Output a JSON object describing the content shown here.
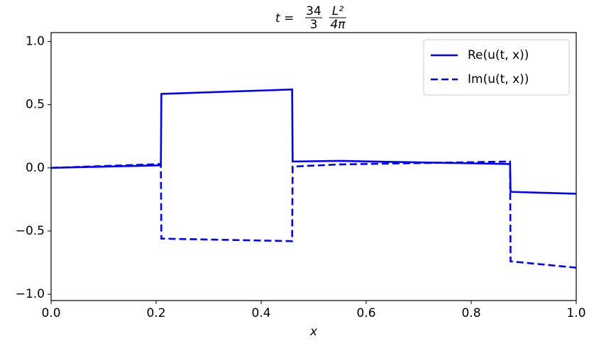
{
  "chart_data": {
    "type": "line",
    "title": {
      "lhs": "t =",
      "fractions": [
        [
          "34",
          "3"
        ],
        [
          "L²",
          "4π"
        ]
      ]
    },
    "x_label": "x",
    "x": [
      0,
      0.209,
      0.21,
      0.459,
      0.46,
      0.55,
      0.874,
      0.875,
      1.0
    ],
    "series": [
      {
        "name": "Re(u(t, x))",
        "color": "#0000ff",
        "linestyle": "solid",
        "values": [
          0,
          0.02,
          0.585,
          0.62,
          0.05,
          0.055,
          0.03,
          -0.19,
          -0.205
        ]
      },
      {
        "name": "Im(u(t, x))",
        "color": "#0000ff",
        "linestyle": "dashed",
        "values": [
          0,
          0.03,
          -0.56,
          -0.58,
          0.01,
          0.027,
          0.05,
          -0.74,
          -0.79
        ]
      }
    ],
    "xlim": [
      0,
      1
    ],
    "ylim": [
      -1.05,
      1.07
    ],
    "xticks": [
      {
        "value": 0,
        "label": "0.0"
      },
      {
        "value": 0.2,
        "label": "0.2"
      },
      {
        "value": 0.4,
        "label": "0.4"
      },
      {
        "value": 0.6,
        "label": "0.6"
      },
      {
        "value": 0.8,
        "label": "0.8"
      },
      {
        "value": 1,
        "label": "1.0"
      }
    ],
    "yticks": [
      {
        "value": -1,
        "label": "−1.0"
      },
      {
        "value": -0.5,
        "label": "−0.5"
      },
      {
        "value": 0,
        "label": "0.0"
      },
      {
        "value": 0.5,
        "label": "0.5"
      },
      {
        "value": 1,
        "label": "1.0"
      }
    ],
    "legend": "upper right"
  }
}
